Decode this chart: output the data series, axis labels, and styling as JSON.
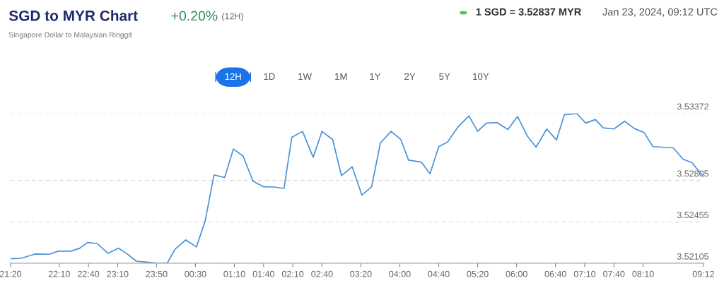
{
  "chart_data": {
    "type": "line",
    "title": "SGD to MYR Chart",
    "subtitle": "Singapore Dollar to Malaysian Ringgit",
    "annotations": [
      "+0.20%",
      "(12H)",
      "1 SGD = 3.52837 MYR",
      "Jan 23, 2024, 09:12 UTC",
      "12H",
      "1D",
      "1W",
      "1M",
      "1Y",
      "2Y",
      "5Y",
      "10Y"
    ],
    "x": [
      "2024-01-22T21:20",
      "2024-01-22T21:31",
      "2024-01-22T21:45",
      "2024-01-22T22:00",
      "2024-01-22T22:09",
      "2024-01-22T22:22",
      "2024-01-22T22:31",
      "2024-01-22T22:39",
      "2024-01-22T22:49",
      "2024-01-22T23:00",
      "2024-01-22T23:11",
      "2024-01-22T23:20",
      "2024-01-22T23:29",
      "2024-01-22T23:40",
      "2024-01-22T23:51",
      "2024-01-23T00:01",
      "2024-01-23T00:09",
      "2024-01-23T00:20",
      "2024-01-23T00:31",
      "2024-01-23T00:40",
      "2024-01-23T00:49",
      "2024-01-23T01:00",
      "2024-01-23T01:09",
      "2024-01-23T01:19",
      "2024-01-23T01:29",
      "2024-01-23T01:40",
      "2024-01-23T01:51",
      "2024-01-23T02:01",
      "2024-01-23T02:09",
      "2024-01-23T02:20",
      "2024-01-23T02:31",
      "2024-01-23T02:40",
      "2024-01-23T02:51",
      "2024-01-23T03:00",
      "2024-01-23T03:11",
      "2024-01-23T03:21",
      "2024-01-23T03:31",
      "2024-01-23T03:40",
      "2024-01-23T03:51",
      "2024-01-23T04:01",
      "2024-01-23T04:09",
      "2024-01-23T04:22",
      "2024-01-23T04:31",
      "2024-01-23T04:40",
      "2024-01-23T04:49",
      "2024-01-23T05:00",
      "2024-01-23T05:11",
      "2024-01-23T05:20",
      "2024-01-23T05:29",
      "2024-01-23T05:40",
      "2024-01-23T05:51",
      "2024-01-23T06:01",
      "2024-01-23T06:11",
      "2024-01-23T06:20",
      "2024-01-23T06:31",
      "2024-01-23T06:41",
      "2024-01-23T06:49",
      "2024-01-23T07:02",
      "2024-01-23T07:11",
      "2024-01-23T07:21",
      "2024-01-23T07:29",
      "2024-01-23T07:40",
      "2024-01-23T07:51",
      "2024-01-23T08:01",
      "2024-01-23T08:11",
      "2024-01-23T08:20",
      "2024-01-23T08:41",
      "2024-01-23T08:51",
      "2024-01-23T09:00",
      "2024-01-23T09:12"
    ],
    "series": [
      {
        "color": "#4a90d9",
        "values": [
          3.52143,
          3.52147,
          3.52183,
          3.52181,
          3.52207,
          3.52207,
          3.52231,
          3.5228,
          3.52272,
          3.52189,
          3.52232,
          3.52183,
          3.52123,
          3.52115,
          3.52105,
          3.52107,
          3.52223,
          3.52302,
          3.52243,
          3.52462,
          3.52851,
          3.52829,
          3.5307,
          3.5301,
          3.528,
          3.52751,
          3.52749,
          3.52737,
          3.53169,
          3.53219,
          3.53,
          3.53219,
          3.5315,
          3.52845,
          3.5292,
          3.52681,
          3.52751,
          3.5312,
          3.53219,
          3.5315,
          3.52976,
          3.5296,
          3.5286,
          3.5309,
          3.53129,
          3.53259,
          3.53349,
          3.53219,
          3.53289,
          3.53293,
          3.53235,
          3.53345,
          3.5318,
          3.53086,
          3.53239,
          3.53146,
          3.53359,
          3.53369,
          3.53289,
          3.53319,
          3.53249,
          3.53239,
          3.53305,
          3.53243,
          3.5321,
          3.5309,
          3.5308,
          3.52984,
          3.52956,
          3.52837
        ]
      }
    ],
    "xlim": [
      "2024-01-22T21:20",
      "2024-01-23T09:12"
    ],
    "xticks": [
      {
        "value": "2024-01-22T21:20",
        "label": "21:20"
      },
      {
        "value": "2024-01-22T22:10",
        "label": "22:10"
      },
      {
        "value": "2024-01-22T22:40",
        "label": "22:40"
      },
      {
        "value": "2024-01-22T23:10",
        "label": "23:10"
      },
      {
        "value": "2024-01-22T23:50",
        "label": "23:50"
      },
      {
        "value": "2024-01-23T00:30",
        "label": "00:30"
      },
      {
        "value": "2024-01-23T01:10",
        "label": "01:10"
      },
      {
        "value": "2024-01-23T01:40",
        "label": "01:40"
      },
      {
        "value": "2024-01-23T02:10",
        "label": "02:10"
      },
      {
        "value": "2024-01-23T02:40",
        "label": "02:40"
      },
      {
        "value": "2024-01-23T03:20",
        "label": "03:20"
      },
      {
        "value": "2024-01-23T04:00",
        "label": "04:00"
      },
      {
        "value": "2024-01-23T04:40",
        "label": "04:40"
      },
      {
        "value": "2024-01-23T05:20",
        "label": "05:20"
      },
      {
        "value": "2024-01-23T06:00",
        "label": "06:00"
      },
      {
        "value": "2024-01-23T06:40",
        "label": "06:40"
      },
      {
        "value": "2024-01-23T07:10",
        "label": "07:10"
      },
      {
        "value": "2024-01-23T07:40",
        "label": "07:40"
      },
      {
        "value": "2024-01-23T08:10",
        "label": "08:10"
      },
      {
        "value": "2024-01-23T09:12",
        "label": "09:12"
      }
    ],
    "ylim": [
      3.52105,
      3.53372
    ],
    "yticks": [
      3.52105,
      3.52455,
      3.52805,
      3.53372
    ],
    "grid": "y",
    "marker": "none",
    "line_style": "solid"
  }
}
